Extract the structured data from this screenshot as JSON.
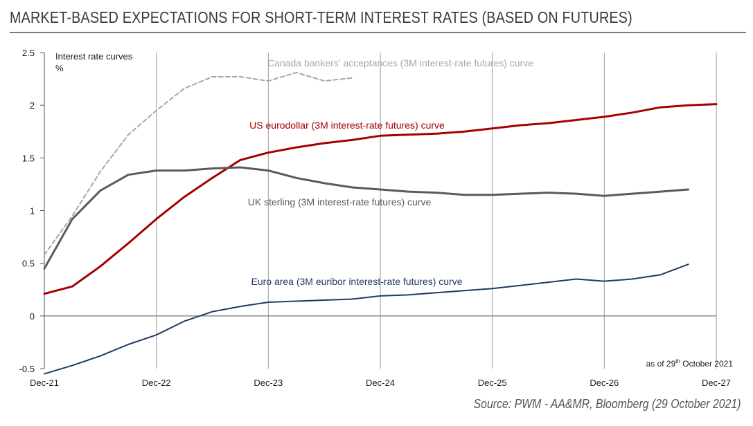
{
  "header": {
    "title": "MARKET-BASED EXPECTATIONS FOR SHORT-TERM INTEREST RATES (BASED ON FUTURES)"
  },
  "footer": {
    "source": "Source: PWM - AA&MR, Bloomberg (29 October 2021)"
  },
  "chart_data": {
    "type": "line",
    "ylabel": "Interest rate curves",
    "yunit": "%",
    "ylim": [
      -0.5,
      2.5
    ],
    "yticks": [
      "2.5",
      "2",
      "1.5",
      "1",
      "0.5",
      "0",
      "-0.5"
    ],
    "ytick_values": [
      2.5,
      2,
      1.5,
      1,
      0.5,
      0,
      -0.5
    ],
    "xlim": [
      0,
      72
    ],
    "xticks": [
      "Dec-21",
      "Dec-22",
      "Dec-23",
      "Dec-24",
      "Dec-25",
      "Dec-26",
      "Dec-27"
    ],
    "xtick_values": [
      0,
      12,
      24,
      36,
      48,
      60,
      72
    ],
    "grid": "vertical",
    "as_of": {
      "prefix": "as of 29",
      "sup": "th",
      "suffix": " October 2021"
    },
    "series": [
      {
        "name": "Canada bankers' acceptances (3M interest-rate futures) curve",
        "color": "#a6a6a6",
        "dashed": true,
        "x": [
          0,
          3,
          6,
          9,
          12,
          15,
          18,
          21,
          24,
          27,
          30,
          33
        ],
        "y": [
          0.58,
          0.95,
          1.37,
          1.72,
          1.95,
          2.16,
          2.27,
          2.27,
          2.23,
          2.31,
          2.23,
          2.26
        ]
      },
      {
        "name": "US eurodollar (3M interest-rate futures) curve",
        "color": "#a50000",
        "dashed": false,
        "x": [
          0,
          3,
          6,
          9,
          12,
          15,
          18,
          21,
          24,
          27,
          30,
          33,
          36,
          39,
          42,
          45,
          48,
          51,
          54,
          57,
          60,
          63,
          66,
          69,
          72
        ],
        "y": [
          0.21,
          0.28,
          0.47,
          0.69,
          0.92,
          1.13,
          1.31,
          1.48,
          1.55,
          1.6,
          1.64,
          1.67,
          1.71,
          1.72,
          1.73,
          1.75,
          1.78,
          1.81,
          1.83,
          1.86,
          1.89,
          1.93,
          1.98,
          2.0,
          2.01
        ]
      },
      {
        "name": "UK sterling (3M interest-rate futures) curve",
        "color": "#5a5a5a",
        "dashed": false,
        "x": [
          0,
          3,
          6,
          9,
          12,
          15,
          18,
          21,
          24,
          27,
          30,
          33,
          36,
          39,
          42,
          45,
          48,
          51,
          54,
          57,
          60,
          63,
          66,
          69
        ],
        "y": [
          0.45,
          0.92,
          1.19,
          1.34,
          1.38,
          1.38,
          1.4,
          1.41,
          1.38,
          1.31,
          1.26,
          1.22,
          1.2,
          1.18,
          1.17,
          1.15,
          1.15,
          1.16,
          1.17,
          1.16,
          1.14,
          1.16,
          1.18,
          1.2
        ]
      },
      {
        "name": "Euro area (3M euribor interest-rate futures) curve",
        "color": "#1f3a63",
        "dashed": false,
        "x": [
          0,
          3,
          6,
          9,
          12,
          15,
          18,
          21,
          24,
          27,
          30,
          33,
          36,
          39,
          42,
          45,
          48,
          51,
          54,
          57,
          60,
          63,
          66,
          69
        ],
        "y": [
          -0.55,
          -0.47,
          -0.38,
          -0.27,
          -0.18,
          -0.05,
          0.04,
          0.09,
          0.13,
          0.14,
          0.15,
          0.16,
          0.19,
          0.2,
          0.22,
          0.24,
          0.26,
          0.29,
          0.32,
          0.35,
          0.33,
          0.35,
          0.39,
          0.49
        ]
      }
    ]
  }
}
